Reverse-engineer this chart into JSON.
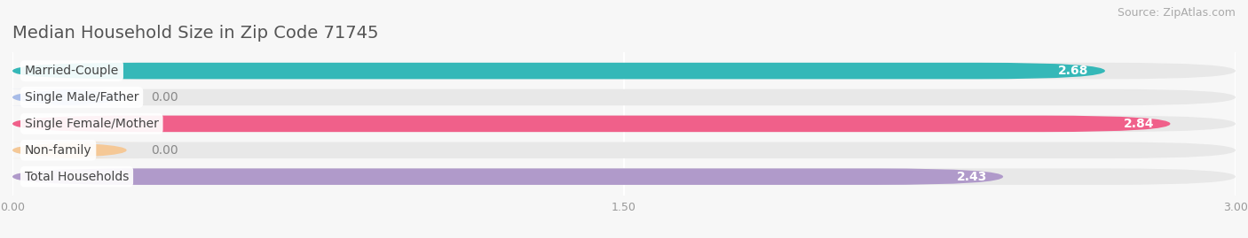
{
  "title": "Median Household Size in Zip Code 71745",
  "source": "Source: ZipAtlas.com",
  "categories": [
    "Married-Couple",
    "Single Male/Father",
    "Single Female/Mother",
    "Non-family",
    "Total Households"
  ],
  "values": [
    2.68,
    0.0,
    2.84,
    0.0,
    2.43
  ],
  "bar_colors": [
    "#35b8b8",
    "#a8bce8",
    "#f0608a",
    "#f5c896",
    "#b09aca"
  ],
  "xlim_min": 0,
  "xlim_max": 3.0,
  "xticks": [
    0.0,
    1.5,
    3.0
  ],
  "xtick_labels": [
    "0.00",
    "1.50",
    "3.00"
  ],
  "background_color": "#f7f7f7",
  "bar_bg_color": "#e8e8e8",
  "title_fontsize": 14,
  "source_fontsize": 9,
  "bar_height": 0.62,
  "bar_label_fontsize": 10,
  "category_fontsize": 10,
  "zero_stub_value": 0.28
}
